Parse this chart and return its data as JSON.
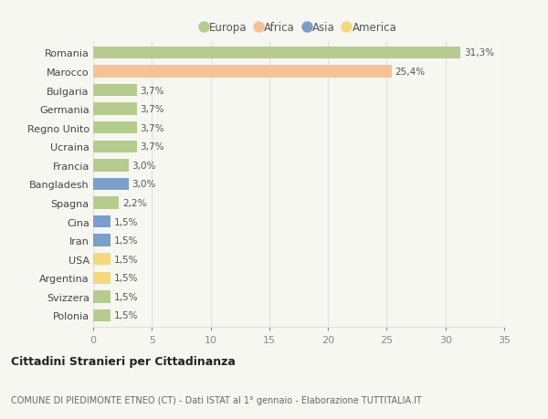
{
  "countries": [
    "Romania",
    "Marocco",
    "Bulgaria",
    "Germania",
    "Regno Unito",
    "Ucraina",
    "Francia",
    "Bangladesh",
    "Spagna",
    "Cina",
    "Iran",
    "USA",
    "Argentina",
    "Svizzera",
    "Polonia"
  ],
  "values": [
    31.3,
    25.4,
    3.7,
    3.7,
    3.7,
    3.7,
    3.0,
    3.0,
    2.2,
    1.5,
    1.5,
    1.5,
    1.5,
    1.5,
    1.5
  ],
  "labels": [
    "31,3%",
    "25,4%",
    "3,7%",
    "3,7%",
    "3,7%",
    "3,7%",
    "3,0%",
    "3,0%",
    "2,2%",
    "1,5%",
    "1,5%",
    "1,5%",
    "1,5%",
    "1,5%",
    "1,5%"
  ],
  "continents": [
    "Europa",
    "Africa",
    "Europa",
    "Europa",
    "Europa",
    "Europa",
    "Europa",
    "Asia",
    "Europa",
    "Asia",
    "Asia",
    "America",
    "America",
    "Europa",
    "Europa"
  ],
  "colors": {
    "Europa": "#b5cc8e",
    "Africa": "#f5c396",
    "Asia": "#7a9fcb",
    "America": "#f5d87a"
  },
  "xlim": [
    0,
    35
  ],
  "xticks": [
    0,
    5,
    10,
    15,
    20,
    25,
    30,
    35
  ],
  "background_color": "#f7f7f2",
  "plot_bg_color": "#f7f7f2",
  "title": "Cittadini Stranieri per Cittadinanza",
  "subtitle": "COMUNE DI PIEDIMONTE ETNEO (CT) - Dati ISTAT al 1° gennaio - Elaborazione TUTTITALIA.IT",
  "grid_color": "#e0e0e0",
  "legend_order": [
    "Europa",
    "Africa",
    "Asia",
    "America"
  ],
  "label_color": "#555555",
  "bar_height": 0.65
}
